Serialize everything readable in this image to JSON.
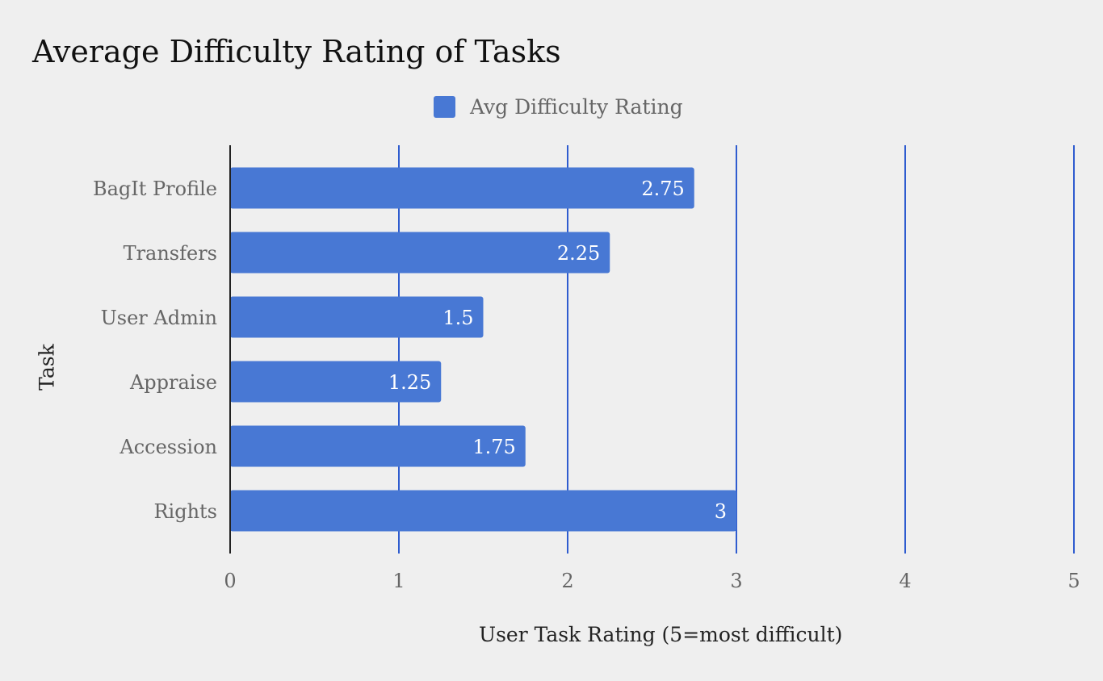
{
  "chart_data": {
    "type": "bar",
    "orientation": "horizontal",
    "title": "Average Difficulty Rating of Tasks",
    "categories": [
      "BagIt Profile",
      "Transfers",
      "User Admin",
      "Appraise",
      "Accession",
      "Rights"
    ],
    "series": [
      {
        "name": "Avg Difficulty Rating",
        "values": [
          2.75,
          2.25,
          1.5,
          1.25,
          1.75,
          3
        ]
      }
    ],
    "data_labels": [
      "2.75",
      "2.25",
      "1.5",
      "1.25",
      "1.75",
      "3"
    ],
    "xlabel": "User Task Rating (5=most difficult)",
    "ylabel": "Task",
    "xlim": [
      0,
      5
    ],
    "xticks": [
      0,
      1,
      2,
      3,
      4,
      5
    ],
    "grid": "vertical",
    "legend_position": "top-center",
    "colors": {
      "bar": "#4878d4",
      "grid": "#2f5ccf",
      "axis": "#222222",
      "label_text": "#ffffff"
    }
  }
}
